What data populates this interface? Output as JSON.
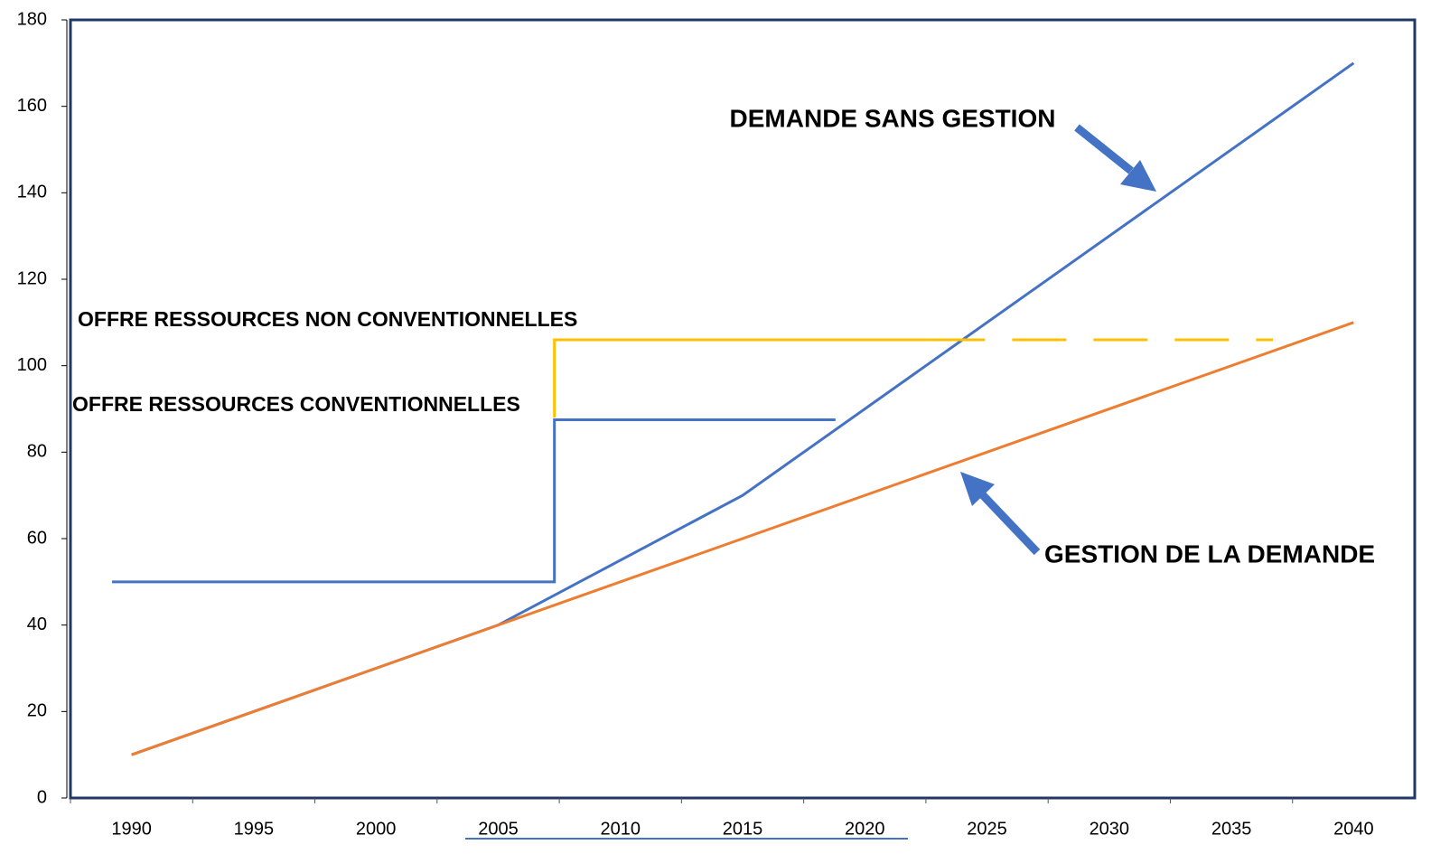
{
  "chart_data": {
    "type": "line",
    "xlim": [
      1987.5,
      2042.5
    ],
    "xticks": [
      1990,
      1995,
      2000,
      2005,
      2010,
      2015,
      2020,
      2025,
      2030,
      2035,
      2040
    ],
    "ylim": [
      0,
      180
    ],
    "yticks": [
      0,
      20,
      40,
      60,
      80,
      100,
      120,
      140,
      160,
      180
    ],
    "series": [
      {
        "color": "#4472c4",
        "x": [
          1990,
          2005,
          2015,
          2040
        ],
        "values": [
          10,
          40,
          70,
          170
        ]
      },
      {
        "color": "#ed7d31",
        "x": [
          1990,
          2040
        ],
        "values": [
          10,
          110
        ]
      },
      {
        "color": "#4472c4",
        "x": [
          1989.2,
          2007.3,
          2007.3,
          2018.8
        ],
        "values": [
          50,
          50,
          87.5,
          87.5
        ]
      },
      {
        "color": "#ffc000",
        "x": [
          2007.3,
          2007.3,
          2022.7
        ],
        "values": [
          88,
          106,
          106
        ]
      },
      {
        "color": "#ffc000",
        "style": "dashed",
        "x": [
          2022.7,
          2036.7
        ],
        "values": [
          106,
          106
        ]
      }
    ],
    "annotations": [
      "DEMANDE SANS GESTION",
      "OFFRE RESSOURCES NON CONVENTIONNELLES",
      "OFFRE RESSOURCES CONVENTIONNELLES",
      "GESTION DE LA DEMANDE"
    ]
  }
}
